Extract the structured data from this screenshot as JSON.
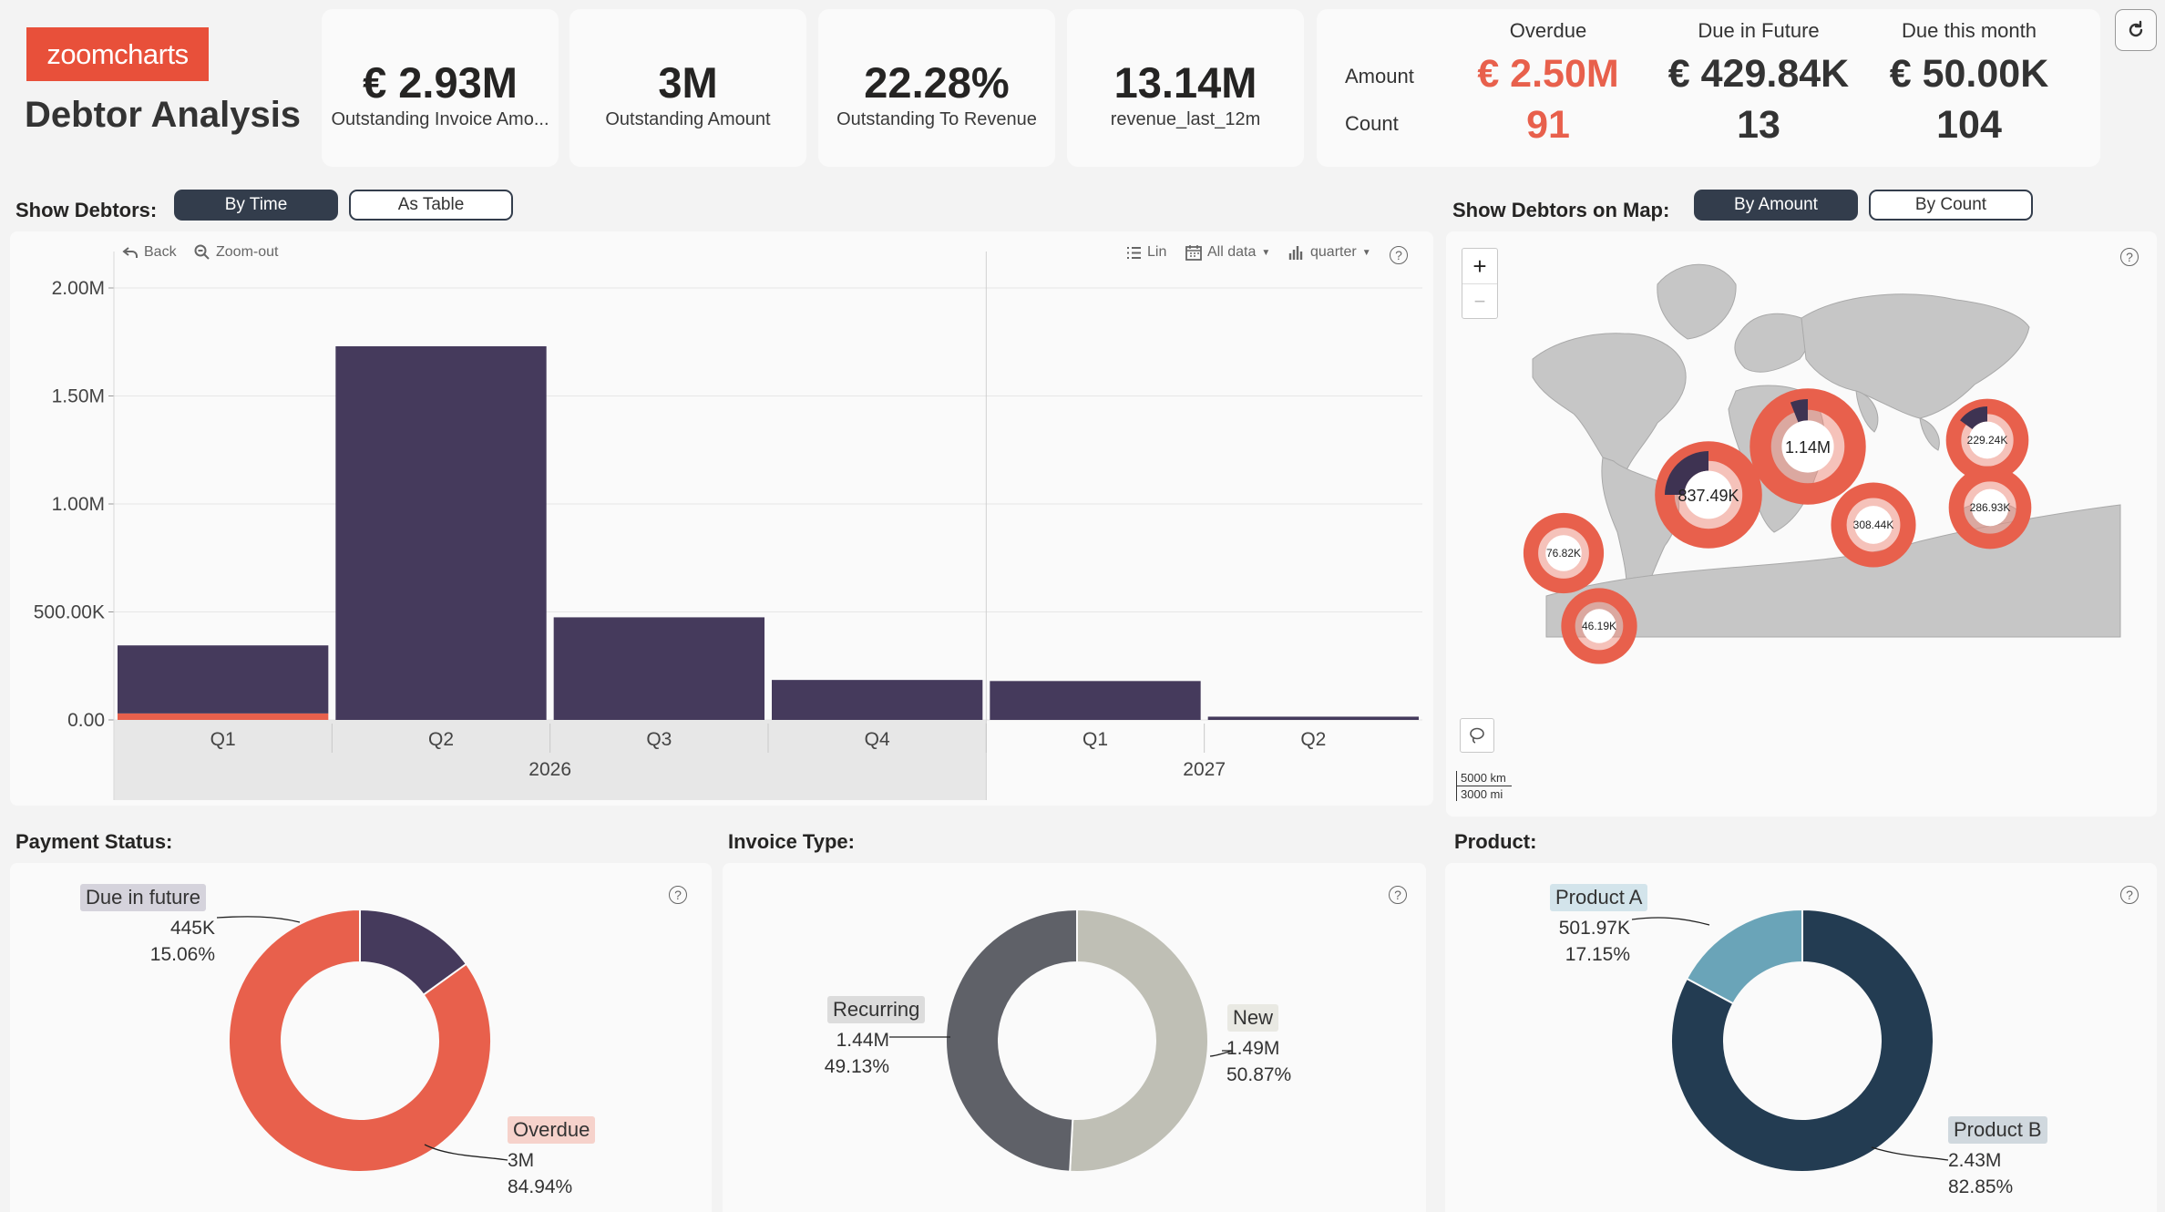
{
  "brand": {
    "logo_text": "zoomcharts",
    "title": "Debtor Analysis"
  },
  "kpis": [
    {
      "value": "€ 2.93M",
      "label": "Outstanding Invoice Amo..."
    },
    {
      "value": "3M",
      "label": "Outstanding Amount"
    },
    {
      "value": "22.28%",
      "label": "Outstanding To Revenue"
    },
    {
      "value": "13.14M",
      "label": "revenue_last_12m"
    }
  ],
  "overview": {
    "headers": [
      "Overdue",
      "Due in Future",
      "Due this month"
    ],
    "row_labels": [
      "Amount",
      "Count"
    ],
    "amounts": [
      "€ 2.50M",
      "€ 429.84K",
      "€ 50.00K"
    ],
    "counts": [
      "91",
      "13",
      "104"
    ]
  },
  "debtors": {
    "title": "Show Debtors:",
    "toggle": [
      "By Time",
      "As Table"
    ],
    "toolbar": {
      "back": "Back",
      "zoom_out": "Zoom-out",
      "scale": "Lin",
      "range": "All data",
      "period": "quarter"
    }
  },
  "map": {
    "title": "Show Debtors on Map:",
    "toggle": [
      "By Amount",
      "By Count"
    ],
    "zoom_in": "+",
    "zoom_out": "−",
    "scale_km": "5000 km",
    "scale_mi": "3000 mi",
    "bubbles": [
      "76.82K",
      "837.49K",
      "1.14M",
      "229.24K",
      "308.44K",
      "286.93K",
      "46.19K"
    ]
  },
  "chart_data": [
    {
      "type": "bar",
      "categories": [
        "Q1",
        "Q2",
        "Q3",
        "Q4",
        "Q1",
        "Q2"
      ],
      "groups": [
        {
          "label": "2026",
          "span": 4
        },
        {
          "label": "2027",
          "span": 2
        }
      ],
      "series": [
        {
          "values": [
            30000,
            0,
            0,
            0,
            0,
            0
          ],
          "color": "#e8604c"
        },
        {
          "values": [
            315000,
            1730000,
            475000,
            185000,
            180000,
            15000
          ],
          "color": "#453a5c"
        }
      ],
      "yticks": [
        "0.00",
        "500.00K",
        "1.00M",
        "1.50M",
        "2.00M"
      ],
      "ylim": [
        0,
        2000000
      ]
    },
    {
      "type": "pie",
      "title": "Payment Status:",
      "slices": [
        {
          "name": "Due in future",
          "value_label": "445K",
          "percent": 15.06,
          "color": "#453a5c"
        },
        {
          "name": "Overdue",
          "value_label": "3M",
          "percent": 84.94,
          "color": "#e8604c"
        }
      ]
    },
    {
      "type": "pie",
      "title": "Invoice Type:",
      "slices": [
        {
          "name": "New",
          "value_label": "1.49M",
          "percent": 50.87,
          "color": "#bfbfb5"
        },
        {
          "name": "Recurring",
          "value_label": "1.44M",
          "percent": 49.13,
          "color": "#5f6168"
        }
      ]
    },
    {
      "type": "pie",
      "title": "Product:",
      "slices": [
        {
          "name": "Product B",
          "value_label": "2.43M",
          "percent": 82.85,
          "color": "#233c52"
        },
        {
          "name": "Product A",
          "value_label": "501.97K",
          "percent": 17.15,
          "color": "#6aa4b8"
        }
      ]
    }
  ],
  "colors": {
    "accent": "#e8604c",
    "dark": "#333d4c",
    "bar": "#453a5c"
  }
}
